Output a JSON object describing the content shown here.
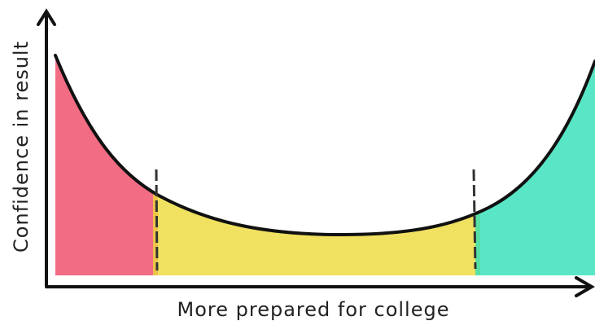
{
  "axes": {
    "x_label": "More prepared for college",
    "y_label": "Confidence in result"
  }
}
